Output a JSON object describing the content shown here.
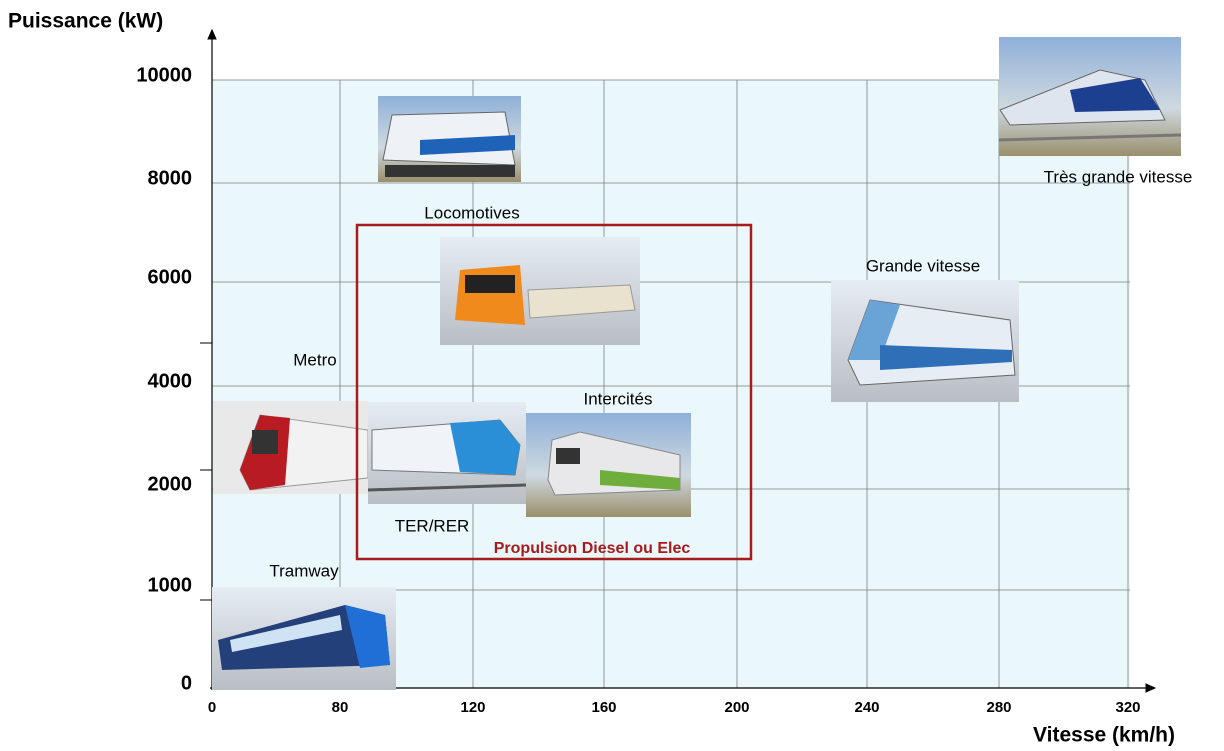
{
  "y_axis": {
    "label": "Puissance (kW)",
    "ticks": [
      0,
      1000,
      2000,
      4000,
      6000,
      8000,
      10000
    ]
  },
  "x_axis": {
    "label": "Vitesse (km/h)",
    "ticks": [
      0,
      80,
      120,
      160,
      200,
      240,
      280,
      320
    ]
  },
  "categories": [
    {
      "label": "Tramway"
    },
    {
      "label": "Metro"
    },
    {
      "label": "TER/RER"
    },
    {
      "label": "Intercités"
    },
    {
      "label": "Locomotives"
    },
    {
      "label": "Grande vitesse"
    },
    {
      "label": "Très grande vitesse"
    }
  ],
  "box_label": "Propulsion Diesel ou Elec"
}
